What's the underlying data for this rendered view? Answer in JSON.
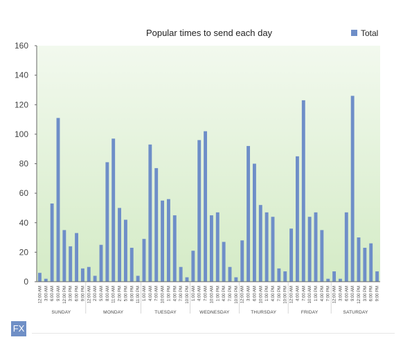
{
  "chart_data": {
    "type": "bar",
    "title": "Popular times to send each day",
    "xlabel": "",
    "ylabel": "",
    "ylim": [
      0,
      160
    ],
    "yticks": [
      0,
      20,
      40,
      60,
      80,
      100,
      120,
      140,
      160
    ],
    "grid": false,
    "legend_position": "top-right",
    "bar_color": "#6e8ec8",
    "background_gradient": [
      "#f2f9ee",
      "#d4ebc6"
    ],
    "series": [
      {
        "name": "Total",
        "values": [
          6,
          2,
          53,
          111,
          35,
          24,
          33,
          9,
          10,
          4,
          25,
          81,
          97,
          50,
          42,
          23,
          4,
          29,
          93,
          77,
          55,
          56,
          45,
          10,
          3,
          21,
          96,
          102,
          45,
          47,
          27,
          10,
          3,
          28,
          92,
          80,
          52,
          47,
          44,
          9,
          7,
          36,
          85,
          123,
          44,
          47,
          35,
          2,
          7,
          2,
          47,
          126,
          30,
          23,
          26,
          7
        ]
      }
    ],
    "groups": [
      {
        "day": "SUNDAY",
        "times": [
          "12:00 AM",
          "3:00 AM",
          "6:00 AM",
          "9:00 AM",
          "12:00 PM",
          "3:00 PM",
          "6:00 PM",
          "9:00 PM"
        ]
      },
      {
        "day": "MONDAY",
        "times": [
          "12:00 AM",
          "2:00 AM",
          "5:00 AM",
          "8:00 AM",
          "11:00 AM",
          "2:00 PM",
          "5:00 PM",
          "8:00 PM",
          "11:00 PM"
        ]
      },
      {
        "day": "TUESDAY",
        "times": [
          "1:00 AM",
          "4:00 AM",
          "7:00 AM",
          "10:00 AM",
          "1:00 PM",
          "4:00 PM",
          "7:00 PM",
          "10:00 PM"
        ]
      },
      {
        "day": "WEDNESDAY",
        "times": [
          "1:00 AM",
          "4:00 AM",
          "7:00 AM",
          "10:00 AM",
          "1:00 PM",
          "4:00 PM",
          "7:00 PM",
          "10:00 PM"
        ]
      },
      {
        "day": "THURSDAY",
        "times": [
          "12:00 AM",
          "3:00 AM",
          "6:00 AM",
          "10:00 AM",
          "1:00 PM",
          "4:00 PM",
          "7:00 PM",
          "10:00 PM"
        ]
      },
      {
        "day": "FRIDAY",
        "times": [
          "12:00 AM",
          "4:00 AM",
          "7:00 AM",
          "10:00 AM",
          "1:00 PM",
          "4:00 PM",
          "7:00 PM"
        ]
      },
      {
        "day": "SATURDAY",
        "times": [
          "12:00 AM",
          "3:00 AM",
          "6:00 AM",
          "9:00 AM",
          "12:00 PM",
          "3:00 PM",
          "6:00 PM",
          "9:00 PM"
        ]
      }
    ]
  },
  "logo": {
    "text": "FX"
  }
}
